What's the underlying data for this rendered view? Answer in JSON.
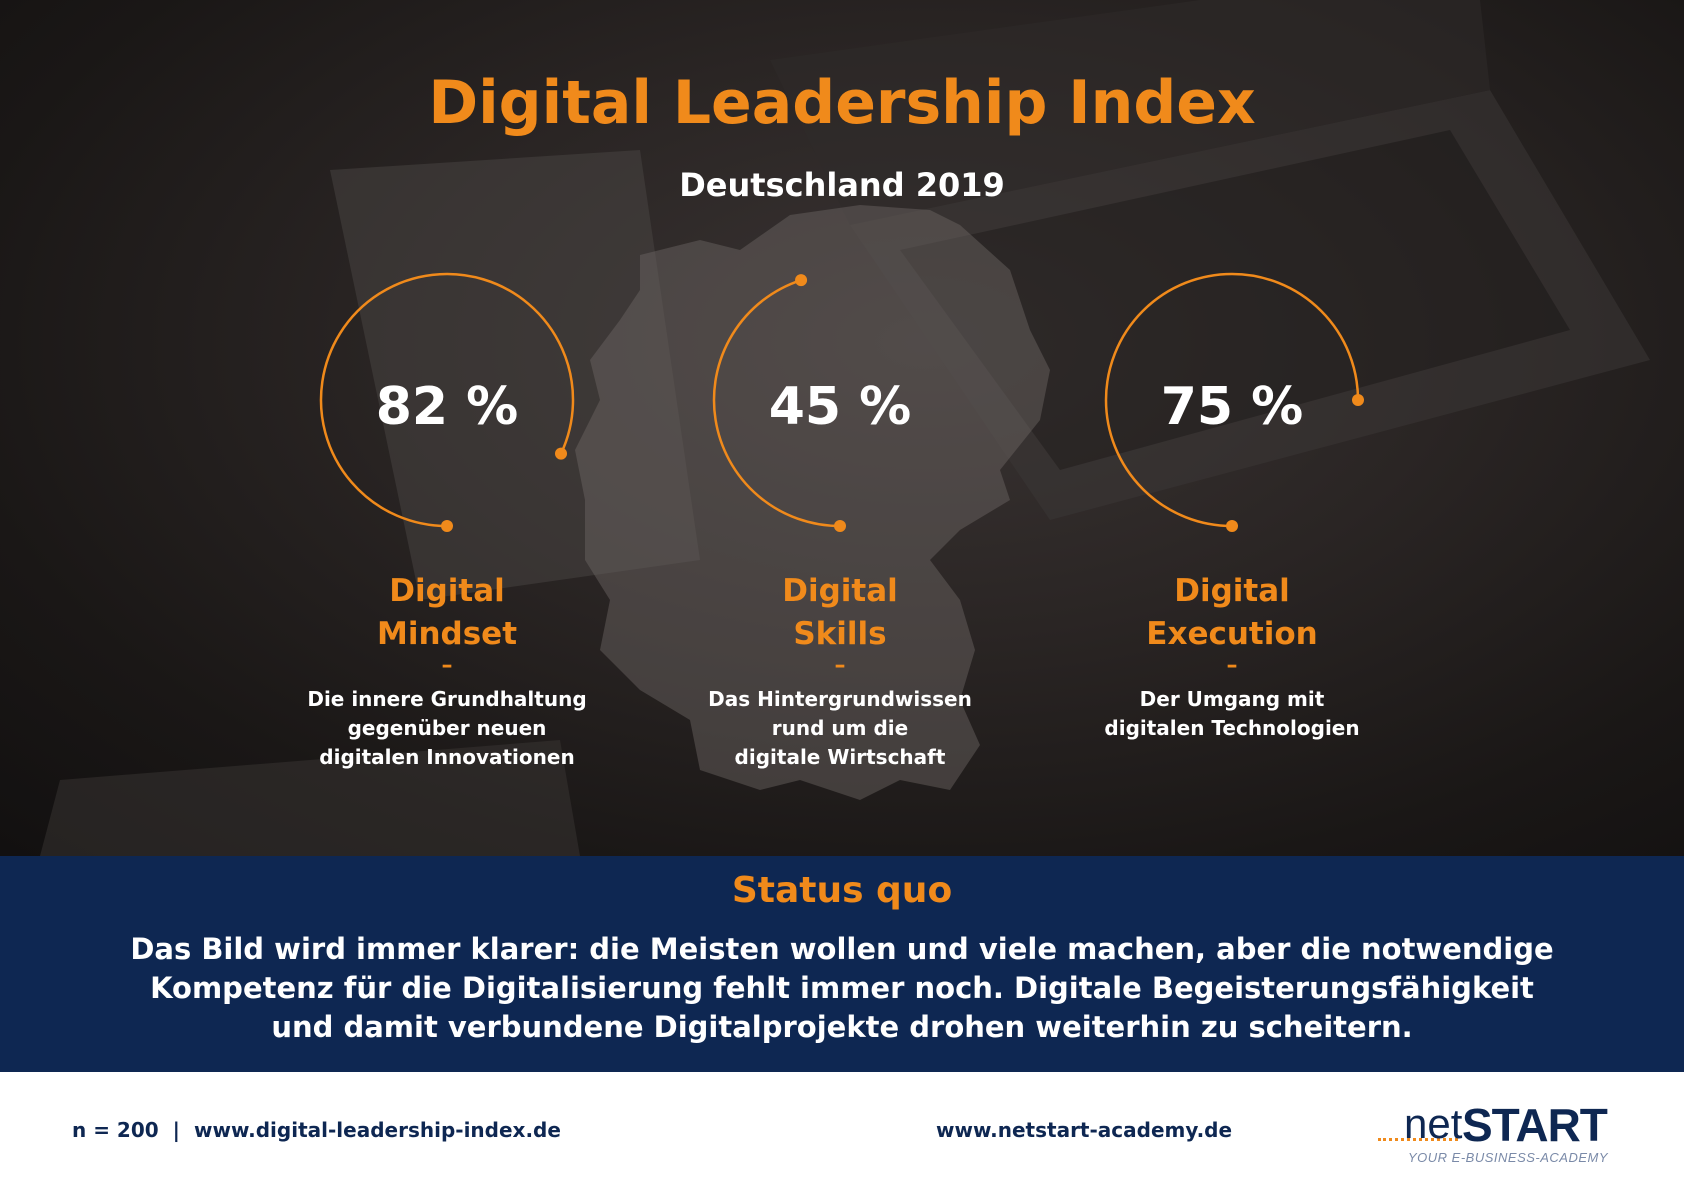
{
  "header": {
    "title": "Digital Leadership Index",
    "subtitle": "Deutschland 2019"
  },
  "metrics": [
    {
      "value_text": "82 %",
      "value": 82,
      "label_line1": "Digital",
      "label_line2": "Mindset",
      "dash": "–",
      "desc_line1": "Die innere Grundhaltung",
      "desc_line2": "gegenüber neuen",
      "desc_line3": "digitalen Innovationen"
    },
    {
      "value_text": "45 %",
      "value": 45,
      "label_line1": "Digital",
      "label_line2": "Skills",
      "dash": "–",
      "desc_line1": "Das Hintergrundwissen",
      "desc_line2": "rund um die",
      "desc_line3": "digitale Wirtschaft"
    },
    {
      "value_text": "75 %",
      "value": 75,
      "label_line1": "Digital",
      "label_line2": "Execution",
      "dash": "–",
      "desc_line1": "Der Umgang mit",
      "desc_line2": "digitalen Technologien",
      "desc_line3": ""
    }
  ],
  "status": {
    "heading": "Status quo",
    "line1": "Das Bild wird immer klarer: die Meisten wollen und viele machen, aber die notwendige",
    "line2": "Kompetenz für die Digitalisierung fehlt immer noch.  Digitale Begeisterungsfähigkeit",
    "line3": "und damit verbundene Digitalprojekte drohen weiterhin zu scheitern."
  },
  "footer": {
    "sample": "n = 200",
    "separator": "|",
    "url_index": "www.digital-leadership-index.de",
    "url_academy": "www.netstart-academy.de",
    "logo_net": "net",
    "logo_start": "START",
    "logo_tagline": "YOUR E-BUSINESS-ACADEMY"
  },
  "colors": {
    "accent": "#f08a1b",
    "navy": "#0e2752",
    "background_dark": "#1c1918"
  }
}
